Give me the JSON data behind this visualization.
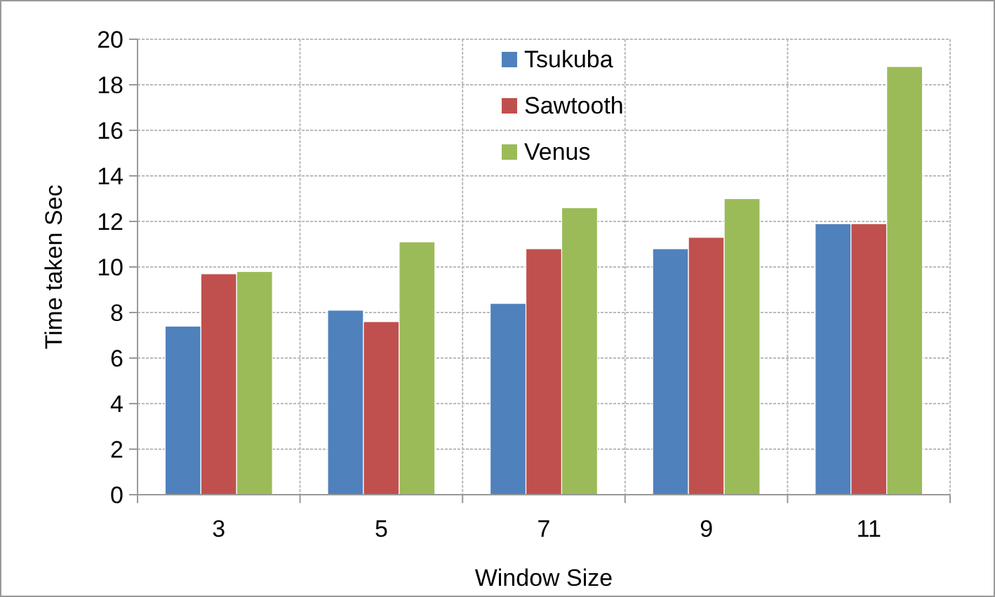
{
  "chart_data": {
    "type": "bar",
    "xlabel": "Window Size",
    "ylabel": "Time taken Sec",
    "categories": [
      "3",
      "5",
      "7",
      "9",
      "11"
    ],
    "series": [
      {
        "name": "Tsukuba",
        "color": "#4f81bd",
        "values": [
          7.4,
          8.1,
          8.4,
          10.8,
          11.9
        ]
      },
      {
        "name": "Sawtooth",
        "color": "#c0504d",
        "values": [
          9.7,
          7.6,
          10.8,
          11.3,
          11.9
        ]
      },
      {
        "name": "Venus",
        "color": "#9bbb59",
        "values": [
          9.8,
          11.1,
          12.6,
          13.0,
          18.8
        ]
      }
    ],
    "ylim": [
      0,
      20
    ],
    "yticks": [
      0,
      2,
      4,
      6,
      8,
      10,
      12,
      14,
      16,
      18,
      20
    ],
    "grid": true,
    "legend": "top"
  }
}
